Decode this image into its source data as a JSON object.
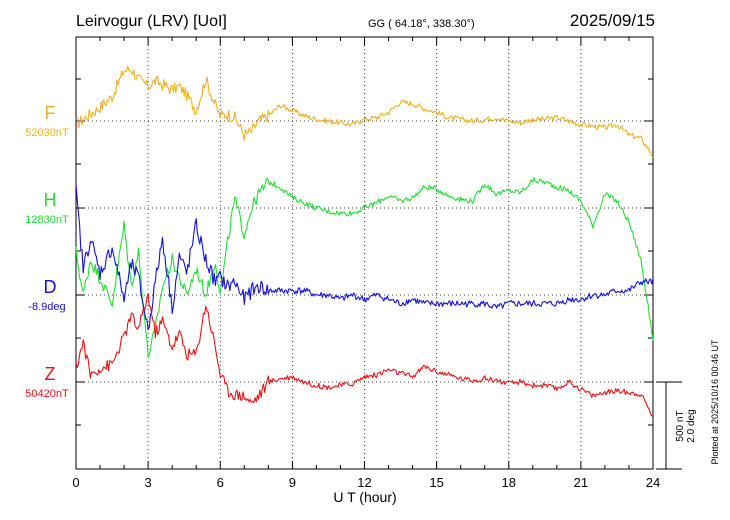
{
  "chart_data": {
    "type": "line",
    "title": "Leirvogur (LRV)  [UoI]",
    "subtitle": "GG ( 64.18°, 338.30°)",
    "date": "2025/09/15",
    "xlabel": "U T (hour)",
    "xlim": [
      0,
      24
    ],
    "xticks": [
      "0",
      "3",
      "6",
      "9",
      "12",
      "15",
      "18",
      "21",
      "24"
    ],
    "grid": true,
    "scale_labels": [
      "500 nT",
      "2.0 deg"
    ],
    "plotted_note": "Plotted at 2025/10/16 00:46 UT",
    "series": [
      {
        "name": "F",
        "baseline_label": "52030nT",
        "color": "#f0b020",
        "x": [
          0,
          0.3,
          0.6,
          1,
          1.5,
          2,
          2.3,
          2.6,
          3,
          3.3,
          3.6,
          4,
          4.3,
          4.6,
          5,
          5.4,
          5.8,
          6,
          6.3,
          6.6,
          7,
          7.3,
          7.6,
          8,
          8.5,
          9,
          9.5,
          10,
          10.5,
          11,
          11.5,
          12,
          12.5,
          13,
          13.5,
          14,
          14.5,
          15,
          15.5,
          16,
          16.5,
          17,
          17.5,
          18,
          18.5,
          19,
          19.5,
          20,
          20.5,
          21,
          21.5,
          22,
          22.5,
          23,
          23.5,
          24
        ],
        "values": [
          -20,
          10,
          40,
          80,
          140,
          290,
          300,
          240,
          200,
          230,
          210,
          180,
          200,
          150,
          60,
          240,
          90,
          30,
          40,
          20,
          -80,
          -60,
          0,
          30,
          90,
          60,
          30,
          10,
          0,
          -10,
          -20,
          10,
          20,
          50,
          110,
          100,
          70,
          50,
          20,
          10,
          0,
          10,
          20,
          0,
          -10,
          10,
          10,
          20,
          0,
          -20,
          -30,
          -40,
          -20,
          -80,
          -100,
          -200
        ]
      },
      {
        "name": "H",
        "baseline_label": "12830nT",
        "color": "#22dd33",
        "x": [
          0,
          0.3,
          0.6,
          1,
          1.5,
          2,
          2.3,
          2.6,
          3,
          3.3,
          3.6,
          4,
          4.3,
          4.6,
          5,
          5.4,
          5.8,
          6,
          6.3,
          6.6,
          7,
          7.3,
          7.6,
          8,
          8.5,
          9,
          9.5,
          10,
          10.5,
          11,
          11.5,
          12,
          12.5,
          13,
          13.5,
          14,
          14.5,
          15,
          15.5,
          16,
          16.5,
          17,
          17.5,
          18,
          18.5,
          19,
          19.5,
          20,
          20.5,
          21,
          21.5,
          22,
          22.5,
          23,
          23.5,
          24
        ],
        "values": [
          -250,
          -500,
          -300,
          -400,
          -550,
          -100,
          -450,
          -250,
          -850,
          -700,
          -450,
          -300,
          -400,
          -500,
          -350,
          -500,
          -300,
          -500,
          -200,
          50,
          -150,
          0,
          80,
          150,
          120,
          60,
          30,
          0,
          -20,
          -30,
          -30,
          0,
          30,
          70,
          40,
          60,
          120,
          110,
          70,
          50,
          40,
          140,
          80,
          100,
          90,
          160,
          150,
          120,
          100,
          40,
          -100,
          80,
          40,
          -80,
          -300,
          -750
        ]
      },
      {
        "name": "D",
        "baseline_label": "-8.9deg",
        "color": "#1010dd",
        "x": [
          0,
          0.3,
          0.6,
          1,
          1.5,
          2,
          2.3,
          2.6,
          3,
          3.3,
          3.6,
          4,
          4.3,
          4.6,
          5,
          5.4,
          5.8,
          6,
          6.3,
          6.6,
          7,
          7.3,
          7.6,
          8,
          8.5,
          9,
          9.5,
          10,
          10.5,
          11,
          11.5,
          12,
          12.5,
          13,
          13.5,
          14,
          14.5,
          15,
          15.5,
          16,
          16.5,
          17,
          17.5,
          18,
          18.5,
          19,
          19.5,
          20,
          20.5,
          21,
          21.5,
          22,
          22.5,
          23,
          23.5,
          24
        ],
        "values": [
          2.4,
          0.6,
          1.3,
          0.5,
          1.1,
          -0.1,
          0.7,
          0.4,
          -0.8,
          0.3,
          1.3,
          -0.3,
          0.9,
          0.5,
          1.6,
          0.8,
          0.3,
          0.4,
          0.2,
          0.3,
          -0.1,
          0.1,
          0.2,
          0.1,
          0.1,
          0.1,
          0.1,
          0.0,
          0.0,
          -0.1,
          0.0,
          -0.1,
          0.0,
          -0.1,
          -0.2,
          -0.1,
          -0.2,
          -0.2,
          -0.2,
          -0.2,
          -0.2,
          -0.2,
          -0.3,
          -0.2,
          -0.2,
          -0.2,
          -0.2,
          -0.2,
          -0.1,
          -0.1,
          0.0,
          0.0,
          0.1,
          0.1,
          0.3,
          0.3
        ]
      },
      {
        "name": "Z",
        "baseline_label": "50420nT",
        "color": "#ee1111",
        "x": [
          0,
          0.3,
          0.6,
          1,
          1.5,
          2,
          2.3,
          2.6,
          3,
          3.3,
          3.6,
          4,
          4.3,
          4.6,
          5,
          5.4,
          5.8,
          6,
          6.3,
          6.6,
          7,
          7.3,
          7.6,
          8,
          8.5,
          9,
          9.5,
          10,
          10.5,
          11,
          11.5,
          12,
          12.5,
          13,
          13.5,
          14,
          14.5,
          15,
          15.5,
          16,
          16.5,
          17,
          17.5,
          18,
          18.5,
          19,
          19.5,
          20,
          20.5,
          21,
          21.5,
          22,
          22.5,
          23,
          23.5,
          24
        ],
        "values": [
          80,
          230,
          40,
          80,
          100,
          260,
          380,
          300,
          500,
          280,
          350,
          200,
          280,
          160,
          160,
          450,
          200,
          50,
          -50,
          -70,
          -80,
          -120,
          -80,
          0,
          20,
          30,
          0,
          -20,
          -30,
          -20,
          -10,
          30,
          40,
          70,
          50,
          30,
          90,
          60,
          40,
          20,
          10,
          20,
          10,
          -10,
          0,
          -20,
          -20,
          -40,
          0,
          -40,
          -80,
          -60,
          -50,
          -60,
          -70,
          -200
        ]
      }
    ]
  }
}
